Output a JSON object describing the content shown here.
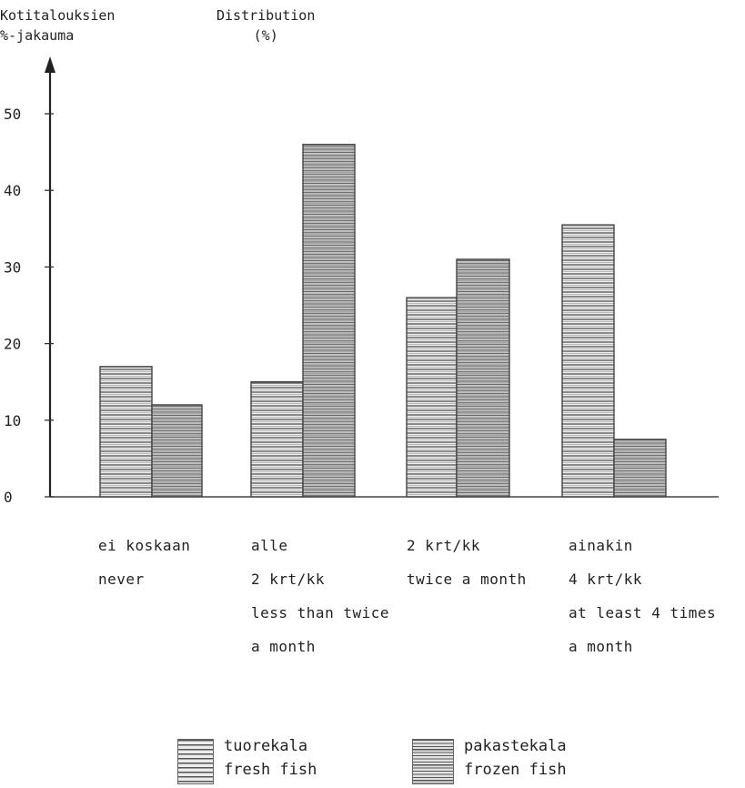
{
  "chart_data": {
    "type": "bar",
    "ylabel_fi": [
      "Kotitalouksien",
      "%-jakauma"
    ],
    "ylabel_en": [
      "Distribution",
      "(%)"
    ],
    "ylim": [
      0,
      50
    ],
    "yticks": [
      "0",
      "10",
      "20",
      "30",
      "40",
      "50"
    ],
    "categories": [
      [
        "ei koskaan",
        "never"
      ],
      [
        "alle",
        "2 krt/kk",
        "less than twice",
        "a month"
      ],
      [
        "2 krt/kk",
        "twice a month"
      ],
      [
        "ainakin",
        "4 krt/kk",
        "at least 4 times",
        "a month"
      ]
    ],
    "series": [
      {
        "name": "tuorekala / fresh fish",
        "values": [
          17,
          15,
          26,
          35.5
        ]
      },
      {
        "name": "pakastekala / frozen fish",
        "values": [
          12,
          46,
          31,
          7.5
        ]
      }
    ],
    "legend": [
      {
        "fi": "tuorekala",
        "en": "fresh fish"
      },
      {
        "fi": "pakastekala",
        "en": "frozen fish"
      }
    ],
    "legend_position": "bottom",
    "grid": false,
    "colors": {
      "ink": "#333333",
      "fill": "#e6e6e6"
    }
  }
}
